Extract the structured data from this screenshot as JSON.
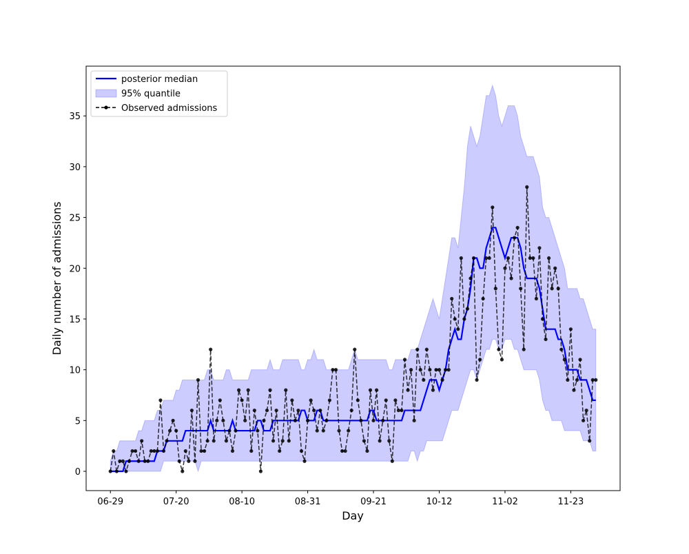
{
  "chart_data": {
    "type": "line",
    "xlabel": "Day",
    "ylabel": "Daily number of admissions",
    "x": [
      "06-29",
      "06-30",
      "07-01",
      "07-02",
      "07-03",
      "07-04",
      "07-05",
      "07-06",
      "07-07",
      "07-08",
      "07-09",
      "07-10",
      "07-11",
      "07-12",
      "07-13",
      "07-14",
      "07-15",
      "07-16",
      "07-17",
      "07-18",
      "07-19",
      "07-20",
      "07-21",
      "07-22",
      "07-23",
      "07-24",
      "07-25",
      "07-26",
      "07-27",
      "07-28",
      "07-29",
      "07-30",
      "07-31",
      "08-01",
      "08-02",
      "08-03",
      "08-04",
      "08-05",
      "08-06",
      "08-07",
      "08-08",
      "08-09",
      "08-10",
      "08-11",
      "08-12",
      "08-13",
      "08-14",
      "08-15",
      "08-16",
      "08-17",
      "08-18",
      "08-19",
      "08-20",
      "08-21",
      "08-22",
      "08-23",
      "08-24",
      "08-25",
      "08-26",
      "08-27",
      "08-28",
      "08-29",
      "08-30",
      "08-31",
      "09-01",
      "09-02",
      "09-03",
      "09-04",
      "09-05",
      "09-06",
      "09-07",
      "09-08",
      "09-09",
      "09-10",
      "09-11",
      "09-12",
      "09-13",
      "09-14",
      "09-15",
      "09-16",
      "09-17",
      "09-18",
      "09-19",
      "09-20",
      "09-21",
      "09-22",
      "09-23",
      "09-24",
      "09-25",
      "09-26",
      "09-27",
      "09-28",
      "09-29",
      "09-30",
      "10-01",
      "10-02",
      "10-03",
      "10-04",
      "10-05",
      "10-06",
      "10-07",
      "10-08",
      "10-09",
      "10-10",
      "10-11",
      "10-12",
      "10-13",
      "10-14",
      "10-15",
      "10-16",
      "10-17",
      "10-18",
      "10-19",
      "10-20",
      "10-21",
      "10-22",
      "10-23",
      "10-24",
      "10-25",
      "10-26",
      "10-27",
      "10-28",
      "10-29",
      "10-30",
      "10-31",
      "11-01",
      "11-02",
      "11-03",
      "11-04",
      "11-05",
      "11-06",
      "11-07",
      "11-08",
      "11-09",
      "11-10",
      "11-11",
      "11-12",
      "11-13",
      "11-14",
      "11-15",
      "11-16",
      "11-17",
      "11-18",
      "11-19",
      "11-20",
      "11-21",
      "11-22",
      "11-23",
      "11-24",
      "11-25",
      "11-26",
      "11-27",
      "11-28",
      "11-29",
      "11-30",
      "12-01"
    ],
    "xticks": [
      "06-29",
      "07-20",
      "08-10",
      "08-31",
      "09-21",
      "10-12",
      "11-02",
      "11-23"
    ],
    "ylim": [
      -1.9,
      39.9
    ],
    "yticks": [
      0,
      5,
      10,
      15,
      20,
      25,
      30,
      35
    ],
    "legend": "upper left",
    "series": [
      {
        "name": "posterior median",
        "color": "#0000ff",
        "values": [
          0,
          0,
          0,
          0,
          0,
          1,
          1,
          1,
          1,
          1,
          1,
          1,
          1,
          1,
          1,
          2,
          2,
          2,
          3,
          3,
          3,
          3,
          3,
          3,
          4,
          4,
          4,
          4,
          4,
          4,
          4,
          4,
          5,
          4,
          4,
          4,
          4,
          4,
          4,
          5,
          4,
          4,
          4,
          4,
          4,
          4,
          4,
          5,
          5,
          4,
          4,
          4,
          5,
          5,
          5,
          5,
          5,
          5,
          5,
          5,
          5,
          6,
          6,
          5,
          5,
          5,
          6,
          6,
          5,
          5,
          5,
          5,
          5,
          5,
          5,
          5,
          5,
          5,
          5,
          5,
          5,
          5,
          5,
          6,
          6,
          5,
          5,
          5,
          5,
          5,
          5,
          5,
          5,
          5,
          6,
          6,
          6,
          6,
          6,
          6,
          7,
          8,
          9,
          9,
          9,
          8,
          9,
          10,
          12,
          13,
          14,
          13,
          13,
          15,
          16,
          18,
          21,
          21,
          20,
          20,
          22,
          23,
          24,
          24,
          23,
          22,
          21,
          22,
          23,
          23,
          23,
          22,
          20,
          19,
          19,
          19,
          19,
          18,
          16,
          14,
          14,
          14,
          14,
          13,
          13,
          12,
          10,
          10,
          10,
          10,
          9,
          9,
          9,
          8,
          7,
          7
        ]
      },
      {
        "name": "95% quantile",
        "color": "#0000ff",
        "upper": [
          1,
          2,
          2,
          3,
          3,
          3,
          3,
          3,
          3,
          4,
          4,
          5,
          5,
          5,
          5,
          6,
          6,
          7,
          7,
          7,
          7,
          8,
          8,
          9,
          9,
          9,
          9,
          9,
          9,
          9,
          9,
          10,
          10,
          9,
          9,
          9,
          9,
          10,
          10,
          9,
          9,
          9,
          9,
          9,
          9,
          10,
          10,
          10,
          10,
          10,
          10,
          11,
          10,
          10,
          10,
          11,
          11,
          11,
          11,
          11,
          11,
          10,
          10,
          11,
          11,
          12,
          11,
          11,
          11,
          10,
          10,
          10,
          10,
          10,
          10,
          10,
          10,
          11,
          12,
          11,
          11,
          11,
          11,
          11,
          11,
          11,
          11,
          11,
          11,
          10,
          10,
          11,
          11,
          11,
          11,
          11,
          12,
          12,
          12,
          13,
          14,
          15,
          16,
          17,
          16,
          15,
          17,
          19,
          21,
          23,
          23,
          22,
          25,
          28,
          32,
          34,
          33,
          32,
          33,
          35,
          37,
          37,
          38,
          37,
          35,
          34,
          35,
          36,
          36,
          36,
          35,
          33,
          32,
          31,
          31,
          31,
          30,
          29,
          26,
          25,
          25,
          24,
          23,
          22,
          21,
          20,
          18,
          18,
          18,
          18,
          17,
          17,
          16,
          15,
          14,
          14
        ],
        "lower": [
          0,
          0,
          0,
          0,
          0,
          0,
          0,
          0,
          0,
          0,
          0,
          0,
          0,
          0,
          0,
          0,
          0,
          1,
          1,
          1,
          1,
          1,
          1,
          1,
          1,
          1,
          1,
          1,
          0,
          1,
          1,
          1,
          1,
          1,
          1,
          1,
          1,
          1,
          1,
          1,
          1,
          1,
          1,
          1,
          1,
          1,
          1,
          1,
          1,
          1,
          1,
          1,
          1,
          1,
          1,
          1,
          1,
          1,
          1,
          1,
          1,
          1,
          1,
          1,
          1,
          1,
          1,
          1,
          1,
          1,
          1,
          1,
          1,
          1,
          1,
          1,
          1,
          1,
          1,
          1,
          1,
          1,
          1,
          1,
          1,
          1,
          1,
          1,
          1,
          1,
          1,
          1,
          1,
          1,
          1,
          1,
          2,
          2,
          1,
          2,
          2,
          3,
          3,
          3,
          3,
          3,
          3,
          4,
          5,
          6,
          6,
          6,
          7,
          8,
          9,
          10,
          10,
          9,
          10,
          11,
          12,
          12,
          13,
          13,
          12,
          12,
          13,
          13,
          13,
          12,
          12,
          11,
          10,
          10,
          10,
          10,
          10,
          9,
          7,
          6,
          6,
          5,
          5,
          5,
          5,
          4,
          4,
          4,
          4,
          4,
          4,
          3,
          3,
          3,
          2,
          2
        ]
      },
      {
        "name": "Observed admissions",
        "color": "#000000",
        "values": [
          0,
          2,
          0,
          1,
          1,
          0,
          1,
          2,
          2,
          1,
          3,
          1,
          1,
          2,
          2,
          2,
          7,
          2,
          3,
          4,
          5,
          4,
          1,
          0,
          2,
          1,
          6,
          1,
          9,
          2,
          2,
          3,
          12,
          3,
          5,
          7,
          5,
          3,
          4,
          2,
          4,
          8,
          7,
          5,
          8,
          2,
          6,
          4,
          0,
          5,
          6,
          8,
          3,
          6,
          2,
          3,
          8,
          3,
          7,
          5,
          6,
          2,
          1,
          5,
          7,
          6,
          4,
          6,
          4,
          5,
          7,
          10,
          10,
          4,
          2,
          2,
          4,
          6,
          12,
          7,
          5,
          3,
          2,
          8,
          5,
          8,
          3,
          5,
          7,
          3,
          1,
          7,
          6,
          6,
          11,
          8,
          10,
          5,
          12,
          10,
          9,
          12,
          10,
          8,
          10,
          10,
          9,
          10,
          10,
          17,
          15,
          14,
          21,
          15,
          16,
          19,
          21,
          9,
          11,
          17,
          21,
          21,
          26,
          18,
          12,
          11,
          20,
          21,
          19,
          23,
          24,
          18,
          12,
          28,
          21,
          21,
          17,
          22,
          15,
          13,
          21,
          18,
          20,
          18,
          12,
          11,
          9,
          14,
          8,
          9,
          11,
          5,
          6,
          3,
          9,
          9
        ]
      }
    ]
  }
}
